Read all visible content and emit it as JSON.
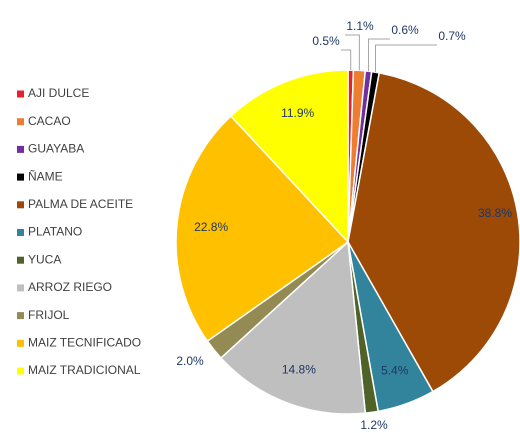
{
  "chart_data": {
    "type": "pie",
    "categories": [
      "AJI DULCE",
      "CACAO",
      "GUAYABA",
      "ÑAME",
      "PALMA DE ACEITE",
      "PLATANO",
      "YUCA",
      "ARROZ RIEGO",
      "FRIJOL",
      "MAIZ TECNIFICADO",
      "MAIZ TRADICIONAL"
    ],
    "values": [
      0.5,
      1.1,
      0.6,
      0.7,
      38.8,
      5.4,
      1.2,
      14.8,
      2.0,
      22.8,
      11.9
    ],
    "value_labels": [
      "0.5%",
      "1.1%",
      "0.6%",
      "0.7%",
      "38.8%",
      "5.4%",
      "1.2%",
      "14.8%",
      "2.0%",
      "22.8%",
      "11.9%"
    ],
    "colors": [
      "#e8202a",
      "#ed7d31",
      "#7030a0",
      "#000000",
      "#9c4a06",
      "#31849b",
      "#4f6228",
      "#bfbfbf",
      "#948a54",
      "#ffc000",
      "#ffff00"
    ],
    "legend": "left"
  }
}
